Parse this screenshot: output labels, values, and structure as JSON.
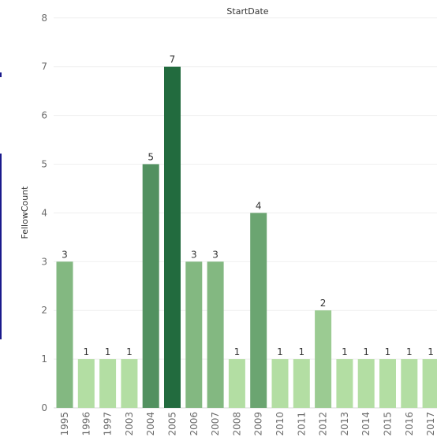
{
  "chart_data": {
    "type": "bar",
    "title": "StartDate",
    "ylabel": "FellowCount",
    "xlabel": "",
    "ylim": [
      0,
      8
    ],
    "yticks": [
      0,
      1,
      2,
      3,
      4,
      5,
      6,
      7,
      8
    ],
    "grid": true,
    "categories": [
      "1995",
      "1996",
      "1997",
      "2003",
      "2004",
      "2005",
      "2006",
      "2007",
      "2008",
      "2009",
      "2010",
      "2011",
      "2012",
      "2013",
      "2014",
      "2015",
      "2016",
      "2017"
    ],
    "values": [
      3,
      1,
      1,
      1,
      5,
      7,
      3,
      3,
      1,
      4,
      1,
      1,
      2,
      1,
      1,
      1,
      1,
      1
    ],
    "color_scale": {
      "min_color": "#b3dea3",
      "max_color": "#226b3e"
    }
  }
}
